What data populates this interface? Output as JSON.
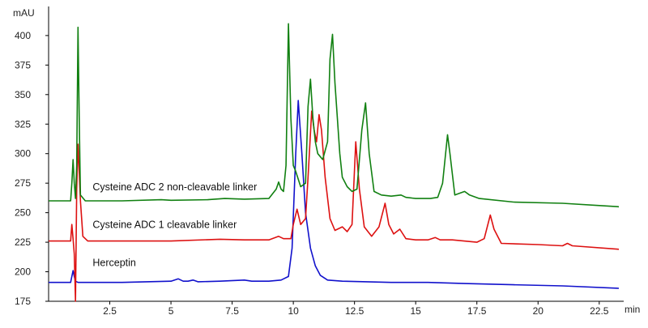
{
  "chart_data": {
    "type": "line",
    "ylabel": "mAU",
    "xlabel": "min",
    "xlim": [
      0,
      23.5
    ],
    "ylim": [
      175,
      415
    ],
    "x_ticks": [
      2.5,
      5,
      7.5,
      10,
      12.5,
      15,
      17.5,
      20,
      22.5
    ],
    "x_tick_labels": [
      "2.5",
      "5",
      "7.5",
      "10",
      "12.5",
      "15",
      "17.5",
      "20",
      "22.5"
    ],
    "y_ticks": [
      175,
      200,
      225,
      250,
      275,
      300,
      325,
      350,
      375,
      400
    ],
    "y_tick_labels": [
      "175",
      "200",
      "225",
      "250",
      "275",
      "300",
      "325",
      "350",
      "375",
      "400"
    ],
    "grid": false,
    "series": [
      {
        "name": "Cysteine ADC 2 non-cleavable linker",
        "color": "#118011",
        "label_pos": [
          1.8,
          269
        ],
        "points": [
          [
            0,
            260
          ],
          [
            0.9,
            260
          ],
          [
            0.95,
            275
          ],
          [
            1.0,
            295
          ],
          [
            1.05,
            275
          ],
          [
            1.1,
            262
          ],
          [
            1.15,
            290
          ],
          [
            1.2,
            407
          ],
          [
            1.25,
            330
          ],
          [
            1.3,
            265
          ],
          [
            1.5,
            260
          ],
          [
            3,
            260
          ],
          [
            4.6,
            261
          ],
          [
            5,
            260.5
          ],
          [
            6.5,
            261
          ],
          [
            7.2,
            262
          ],
          [
            8,
            261.5
          ],
          [
            9,
            262
          ],
          [
            9.3,
            270
          ],
          [
            9.4,
            276
          ],
          [
            9.5,
            270
          ],
          [
            9.6,
            268
          ],
          [
            9.7,
            290
          ],
          [
            9.8,
            410
          ],
          [
            9.9,
            330
          ],
          [
            10.0,
            290
          ],
          [
            10.1,
            285
          ],
          [
            10.3,
            272
          ],
          [
            10.5,
            275
          ],
          [
            10.6,
            340
          ],
          [
            10.7,
            363
          ],
          [
            10.8,
            330
          ],
          [
            10.9,
            310
          ],
          [
            11.0,
            300
          ],
          [
            11.2,
            295
          ],
          [
            11.4,
            310
          ],
          [
            11.5,
            380
          ],
          [
            11.6,
            401
          ],
          [
            11.7,
            360
          ],
          [
            11.9,
            300
          ],
          [
            12.0,
            280
          ],
          [
            12.2,
            272
          ],
          [
            12.4,
            268
          ],
          [
            12.6,
            270
          ],
          [
            12.8,
            320
          ],
          [
            12.95,
            343
          ],
          [
            13.1,
            300
          ],
          [
            13.3,
            268
          ],
          [
            13.6,
            265
          ],
          [
            14.0,
            264
          ],
          [
            14.4,
            265
          ],
          [
            14.6,
            263
          ],
          [
            15.0,
            262
          ],
          [
            15.6,
            262
          ],
          [
            15.9,
            263
          ],
          [
            16.1,
            275
          ],
          [
            16.3,
            316
          ],
          [
            16.4,
            300
          ],
          [
            16.6,
            265
          ],
          [
            17.0,
            268
          ],
          [
            17.2,
            265
          ],
          [
            17.6,
            262
          ],
          [
            19.0,
            259
          ],
          [
            21.0,
            258
          ],
          [
            23.3,
            255
          ]
        ]
      },
      {
        "name": "Cysteine ADC 1 cleavable linker",
        "color": "#dd1111",
        "label_pos": [
          1.8,
          237
        ],
        "points": [
          [
            0,
            226
          ],
          [
            0.9,
            226
          ],
          [
            0.95,
            240
          ],
          [
            1.0,
            228
          ],
          [
            1.05,
            215
          ],
          [
            1.1,
            175
          ],
          [
            1.15,
            270
          ],
          [
            1.2,
            308
          ],
          [
            1.3,
            260
          ],
          [
            1.4,
            230
          ],
          [
            1.6,
            226
          ],
          [
            3,
            226
          ],
          [
            5,
            226
          ],
          [
            7.0,
            227.5
          ],
          [
            8,
            227
          ],
          [
            9.0,
            227
          ],
          [
            9.4,
            230
          ],
          [
            9.6,
            228
          ],
          [
            9.9,
            228
          ],
          [
            10.0,
            240
          ],
          [
            10.15,
            253
          ],
          [
            10.3,
            240
          ],
          [
            10.5,
            245
          ],
          [
            10.6,
            280
          ],
          [
            10.75,
            336
          ],
          [
            10.85,
            320
          ],
          [
            10.95,
            310
          ],
          [
            11.05,
            333
          ],
          [
            11.15,
            320
          ],
          [
            11.3,
            280
          ],
          [
            11.5,
            245
          ],
          [
            11.7,
            235
          ],
          [
            12.0,
            238
          ],
          [
            12.2,
            234
          ],
          [
            12.4,
            240
          ],
          [
            12.55,
            310
          ],
          [
            12.7,
            270
          ],
          [
            12.9,
            238
          ],
          [
            13.2,
            230
          ],
          [
            13.5,
            238
          ],
          [
            13.75,
            258
          ],
          [
            13.9,
            240
          ],
          [
            14.1,
            232
          ],
          [
            14.35,
            236
          ],
          [
            14.6,
            228
          ],
          [
            15.0,
            227
          ],
          [
            15.5,
            227
          ],
          [
            15.8,
            229
          ],
          [
            16.0,
            227
          ],
          [
            16.5,
            227
          ],
          [
            17.5,
            225
          ],
          [
            17.8,
            228
          ],
          [
            18.05,
            248
          ],
          [
            18.2,
            236
          ],
          [
            18.5,
            224
          ],
          [
            20,
            223
          ],
          [
            21.0,
            222
          ],
          [
            21.2,
            224
          ],
          [
            21.4,
            222
          ],
          [
            23.3,
            219
          ]
        ]
      },
      {
        "name": "Herceptin",
        "color": "#1111cc",
        "label_pos": [
          1.8,
          205
        ],
        "points": [
          [
            0,
            191
          ],
          [
            0.9,
            191
          ],
          [
            0.95,
            196
          ],
          [
            1.0,
            201
          ],
          [
            1.05,
            196
          ],
          [
            1.1,
            192
          ],
          [
            1.2,
            191
          ],
          [
            3,
            191
          ],
          [
            5,
            192
          ],
          [
            5.3,
            194
          ],
          [
            5.5,
            192
          ],
          [
            5.7,
            192
          ],
          [
            5.9,
            193
          ],
          [
            6.1,
            191.5
          ],
          [
            7,
            192
          ],
          [
            8.0,
            193
          ],
          [
            8.3,
            192
          ],
          [
            9,
            192
          ],
          [
            9.5,
            193
          ],
          [
            9.8,
            196
          ],
          [
            9.95,
            220
          ],
          [
            10.1,
            300
          ],
          [
            10.2,
            345
          ],
          [
            10.35,
            300
          ],
          [
            10.5,
            250
          ],
          [
            10.7,
            220
          ],
          [
            10.9,
            205
          ],
          [
            11.1,
            197
          ],
          [
            11.4,
            193
          ],
          [
            12.0,
            192
          ],
          [
            13,
            191.5
          ],
          [
            14,
            191
          ],
          [
            15.5,
            191
          ],
          [
            17,
            190
          ],
          [
            19,
            189
          ],
          [
            21,
            188
          ],
          [
            23.3,
            186
          ]
        ]
      }
    ]
  }
}
